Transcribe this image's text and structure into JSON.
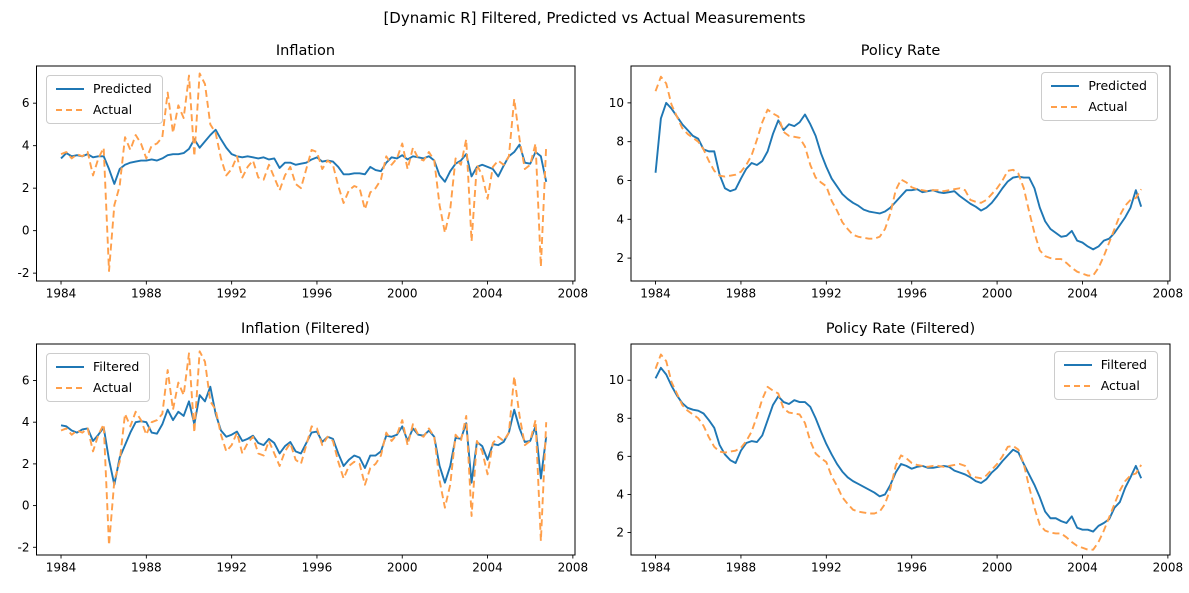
{
  "figure": {
    "title": "[Dynamic R] Filtered, Predicted vs Actual Measurements"
  },
  "colors": {
    "predicted_line": "#1f77b4",
    "filtered_line": "#1f77b4",
    "actual_line": "#ff9f4a",
    "axis": "#000000",
    "legend_border": "#cccccc",
    "background": "#ffffff"
  },
  "x_quarters": [
    1984,
    1984.25,
    1984.5,
    1984.75,
    1985,
    1985.25,
    1985.5,
    1985.75,
    1986,
    1986.25,
    1986.5,
    1986.75,
    1987,
    1987.25,
    1987.5,
    1987.75,
    1988,
    1988.25,
    1988.5,
    1988.75,
    1989,
    1989.25,
    1989.5,
    1989.75,
    1990,
    1990.25,
    1990.5,
    1990.75,
    1991,
    1991.25,
    1991.5,
    1991.75,
    1992,
    1992.25,
    1992.5,
    1992.75,
    1993,
    1993.25,
    1993.5,
    1993.75,
    1994,
    1994.25,
    1994.5,
    1994.75,
    1995,
    1995.25,
    1995.5,
    1995.75,
    1996,
    1996.25,
    1996.5,
    1996.75,
    1997,
    1997.25,
    1997.5,
    1997.75,
    1998,
    1998.25,
    1998.5,
    1998.75,
    1999,
    1999.25,
    1999.5,
    1999.75,
    2000,
    2000.25,
    2000.5,
    2000.75,
    2001,
    2001.25,
    2001.5,
    2001.75,
    2002,
    2002.25,
    2002.5,
    2002.75,
    2003,
    2003.25,
    2003.5,
    2003.75,
    2004,
    2004.25,
    2004.5,
    2004.75,
    2005,
    2005.25,
    2005.5,
    2005.75,
    2006,
    2006.25,
    2006.5,
    2006.75
  ],
  "chart_data": [
    {
      "type": "line",
      "title": "Inflation",
      "xlabel": "",
      "ylabel": "",
      "xlim": [
        1982.85,
        2008.1
      ],
      "ylim": [
        -2.37,
        7.75
      ],
      "x_ticks": [
        1984,
        1988,
        1992,
        1996,
        2000,
        2004,
        2008
      ],
      "y_ticks": [
        -2,
        0,
        2,
        4,
        6
      ],
      "grid": false,
      "legend_position": "upper-left",
      "series": [
        {
          "name": "Predicted",
          "line_style": "solid",
          "color": "#1f77b4",
          "values": [
            3.4,
            3.65,
            3.5,
            3.55,
            3.5,
            3.6,
            3.45,
            3.5,
            3.5,
            2.9,
            2.2,
            2.9,
            3.1,
            3.2,
            3.25,
            3.3,
            3.3,
            3.35,
            3.3,
            3.4,
            3.55,
            3.6,
            3.6,
            3.65,
            3.85,
            4.3,
            3.9,
            4.2,
            4.5,
            4.75,
            4.3,
            3.9,
            3.6,
            3.5,
            3.45,
            3.5,
            3.45,
            3.4,
            3.45,
            3.35,
            3.4,
            2.95,
            3.2,
            3.2,
            3.1,
            3.15,
            3.2,
            3.35,
            3.45,
            3.25,
            3.3,
            3.25,
            3.0,
            2.65,
            2.65,
            2.7,
            2.7,
            2.65,
            3.0,
            2.85,
            2.8,
            3.2,
            3.45,
            3.4,
            3.55,
            3.35,
            3.5,
            3.45,
            3.4,
            3.5,
            3.3,
            2.6,
            2.3,
            2.8,
            3.15,
            3.3,
            3.6,
            2.55,
            3.0,
            3.1,
            3.0,
            2.9,
            2.55,
            3.05,
            3.5,
            3.7,
            4.05,
            3.2,
            3.15,
            3.7,
            3.5,
            2.3
          ]
        },
        {
          "name": "Actual",
          "line_style": "dashed",
          "color": "#ff9f4a",
          "values": [
            3.6,
            3.7,
            3.4,
            3.6,
            3.5,
            3.7,
            2.6,
            3.4,
            3.9,
            -1.9,
            1.2,
            2.1,
            4.4,
            3.8,
            4.5,
            4.1,
            3.4,
            4.0,
            4.1,
            4.4,
            6.5,
            4.6,
            5.9,
            5.3,
            7.3,
            3.5,
            7.4,
            6.9,
            5.0,
            4.6,
            3.4,
            2.6,
            2.9,
            3.5,
            2.5,
            3.0,
            3.3,
            2.5,
            2.4,
            3.1,
            2.5,
            1.9,
            2.6,
            3.0,
            2.2,
            2.0,
            2.9,
            3.8,
            3.7,
            2.9,
            3.3,
            3.1,
            2.1,
            1.3,
            1.9,
            2.1,
            2.0,
            1.0,
            1.8,
            2.0,
            2.4,
            3.5,
            3.1,
            3.4,
            4.1,
            2.9,
            3.9,
            3.4,
            3.3,
            3.7,
            3.3,
            1.2,
            -0.1,
            1.0,
            3.4,
            3.1,
            4.3,
            -0.5,
            3.1,
            2.6,
            1.5,
            3.0,
            3.3,
            3.1,
            3.5,
            6.2,
            4.3,
            2.9,
            3.1,
            4.1,
            -1.7,
            4.0
          ]
        }
      ]
    },
    {
      "type": "line",
      "title": "Policy Rate",
      "xlabel": "",
      "ylabel": "",
      "xlim": [
        1982.85,
        2008.1
      ],
      "ylim": [
        0.82,
        11.9
      ],
      "x_ticks": [
        1984,
        1988,
        1992,
        1996,
        2000,
        2004,
        2008
      ],
      "y_ticks": [
        2,
        4,
        6,
        8,
        10
      ],
      "grid": false,
      "legend_position": "upper-right",
      "series": [
        {
          "name": "Predicted",
          "line_style": "solid",
          "color": "#1f77b4",
          "values": [
            6.4,
            9.2,
            10.0,
            9.7,
            9.3,
            8.9,
            8.6,
            8.3,
            8.15,
            7.6,
            7.5,
            7.5,
            6.3,
            5.6,
            5.45,
            5.55,
            6.1,
            6.6,
            6.9,
            6.8,
            7.0,
            7.5,
            8.4,
            9.1,
            8.6,
            8.9,
            8.8,
            9.0,
            9.4,
            8.9,
            8.3,
            7.4,
            6.7,
            6.1,
            5.7,
            5.3,
            5.05,
            4.85,
            4.7,
            4.5,
            4.4,
            4.35,
            4.3,
            4.4,
            4.6,
            4.9,
            5.2,
            5.5,
            5.5,
            5.55,
            5.4,
            5.45,
            5.5,
            5.4,
            5.35,
            5.4,
            5.45,
            5.2,
            5.0,
            4.8,
            4.65,
            4.45,
            4.6,
            4.85,
            5.2,
            5.6,
            5.95,
            6.15,
            6.2,
            6.15,
            6.15,
            5.6,
            4.6,
            3.9,
            3.5,
            3.3,
            3.1,
            3.15,
            3.4,
            2.9,
            2.8,
            2.6,
            2.45,
            2.6,
            2.9,
            3.0,
            3.3,
            3.7,
            4.1,
            4.6,
            5.5,
            4.65
          ]
        },
        {
          "name": "Actual",
          "line_style": "dashed",
          "color": "#ff9f4a",
          "values": [
            10.6,
            11.35,
            11.0,
            9.9,
            9.3,
            8.7,
            8.4,
            8.2,
            8.0,
            7.6,
            7.0,
            6.5,
            6.25,
            6.2,
            6.25,
            6.3,
            6.45,
            6.8,
            7.3,
            8.1,
            9.0,
            9.65,
            9.45,
            9.3,
            8.5,
            8.3,
            8.25,
            8.2,
            7.75,
            6.8,
            6.15,
            5.9,
            5.7,
            4.95,
            4.45,
            3.85,
            3.5,
            3.2,
            3.1,
            3.05,
            3.0,
            3.0,
            3.1,
            3.5,
            4.3,
            5.5,
            6.05,
            5.9,
            5.65,
            5.55,
            5.5,
            5.45,
            5.5,
            5.5,
            5.45,
            5.5,
            5.55,
            5.6,
            5.5,
            5.0,
            4.9,
            4.85,
            5.0,
            5.3,
            5.6,
            6.0,
            6.5,
            6.55,
            6.35,
            5.6,
            4.4,
            3.3,
            2.4,
            2.1,
            2.0,
            1.95,
            1.95,
            1.75,
            1.5,
            1.3,
            1.2,
            1.1,
            1.1,
            1.5,
            2.1,
            2.8,
            3.5,
            4.2,
            4.7,
            5.0,
            5.1,
            5.55
          ]
        }
      ]
    },
    {
      "type": "line",
      "title": "Inflation (Filtered)",
      "xlabel": "",
      "ylabel": "",
      "xlim": [
        1982.85,
        2008.1
      ],
      "ylim": [
        -2.37,
        7.75
      ],
      "x_ticks": [
        1984,
        1988,
        1992,
        1996,
        2000,
        2004,
        2008
      ],
      "y_ticks": [
        -2,
        0,
        2,
        4,
        6
      ],
      "grid": false,
      "legend_position": "upper-left",
      "series": [
        {
          "name": "Filtered",
          "line_style": "solid",
          "color": "#1f77b4",
          "values": [
            3.85,
            3.8,
            3.6,
            3.5,
            3.65,
            3.7,
            3.1,
            3.4,
            3.75,
            2.2,
            1.0,
            2.3,
            2.9,
            3.5,
            4.0,
            4.05,
            4.0,
            3.5,
            3.45,
            3.9,
            4.6,
            4.1,
            4.5,
            4.3,
            5.0,
            3.9,
            5.3,
            5.0,
            5.7,
            4.4,
            3.6,
            3.3,
            3.4,
            3.55,
            3.1,
            3.2,
            3.35,
            3.0,
            2.9,
            3.2,
            3.0,
            2.5,
            2.85,
            3.05,
            2.6,
            2.5,
            3.0,
            3.5,
            3.55,
            3.05,
            3.3,
            3.2,
            2.5,
            1.9,
            2.2,
            2.4,
            2.3,
            1.8,
            2.4,
            2.4,
            2.6,
            3.35,
            3.3,
            3.4,
            3.8,
            3.1,
            3.7,
            3.4,
            3.35,
            3.6,
            3.3,
            1.9,
            1.1,
            1.9,
            3.25,
            3.2,
            3.95,
            1.1,
            3.05,
            2.85,
            2.2,
            2.95,
            2.9,
            3.05,
            3.5,
            4.6,
            3.7,
            3.05,
            3.1,
            3.8,
            1.3,
            3.3
          ]
        },
        {
          "name": "Actual",
          "line_style": "dashed",
          "color": "#ff9f4a",
          "values": [
            3.6,
            3.7,
            3.4,
            3.6,
            3.5,
            3.7,
            2.6,
            3.4,
            3.9,
            -1.9,
            1.2,
            2.1,
            4.4,
            3.8,
            4.5,
            4.1,
            3.4,
            4.0,
            4.1,
            4.4,
            6.5,
            4.6,
            5.9,
            5.3,
            7.3,
            3.5,
            7.4,
            6.9,
            5.0,
            4.6,
            3.4,
            2.6,
            2.9,
            3.5,
            2.5,
            3.0,
            3.3,
            2.5,
            2.4,
            3.1,
            2.5,
            1.9,
            2.6,
            3.0,
            2.2,
            2.0,
            2.9,
            3.8,
            3.7,
            2.9,
            3.3,
            3.1,
            2.1,
            1.3,
            1.9,
            2.1,
            2.0,
            1.0,
            1.8,
            2.0,
            2.4,
            3.5,
            3.1,
            3.4,
            4.1,
            2.9,
            3.9,
            3.4,
            3.3,
            3.7,
            3.3,
            1.2,
            -0.1,
            1.0,
            3.4,
            3.1,
            4.3,
            -0.5,
            3.1,
            2.6,
            1.5,
            3.0,
            3.3,
            3.1,
            3.5,
            6.2,
            4.3,
            2.9,
            3.1,
            4.1,
            -1.7,
            4.0
          ]
        }
      ]
    },
    {
      "type": "line",
      "title": "Policy Rate (Filtered)",
      "xlabel": "",
      "ylabel": "",
      "xlim": [
        1982.85,
        2008.1
      ],
      "ylim": [
        0.82,
        11.9
      ],
      "x_ticks": [
        1984,
        1988,
        1992,
        1996,
        2000,
        2004,
        2008
      ],
      "y_ticks": [
        2,
        4,
        6,
        8,
        10
      ],
      "grid": false,
      "legend_position": "upper-right",
      "series": [
        {
          "name": "Filtered",
          "line_style": "solid",
          "color": "#1f77b4",
          "values": [
            10.1,
            10.65,
            10.3,
            9.7,
            9.2,
            8.8,
            8.55,
            8.45,
            8.4,
            8.25,
            7.9,
            7.5,
            6.6,
            6.1,
            5.8,
            5.65,
            6.3,
            6.7,
            6.8,
            6.75,
            7.1,
            7.9,
            8.7,
            9.15,
            8.85,
            8.75,
            8.95,
            8.85,
            8.85,
            8.6,
            8.0,
            7.3,
            6.65,
            6.1,
            5.6,
            5.2,
            4.9,
            4.7,
            4.55,
            4.4,
            4.25,
            4.1,
            3.9,
            4.0,
            4.5,
            5.15,
            5.6,
            5.5,
            5.35,
            5.45,
            5.5,
            5.4,
            5.4,
            5.45,
            5.5,
            5.45,
            5.25,
            5.15,
            5.05,
            4.9,
            4.7,
            4.6,
            4.8,
            5.15,
            5.4,
            5.75,
            6.05,
            6.35,
            6.2,
            5.6,
            5.05,
            4.5,
            3.85,
            3.1,
            2.75,
            2.75,
            2.6,
            2.5,
            2.85,
            2.25,
            2.15,
            2.15,
            2.05,
            2.35,
            2.5,
            2.7,
            3.3,
            3.6,
            4.35,
            4.9,
            5.5,
            4.85
          ]
        },
        {
          "name": "Actual",
          "line_style": "dashed",
          "color": "#ff9f4a",
          "values": [
            10.6,
            11.35,
            11.0,
            9.9,
            9.3,
            8.7,
            8.4,
            8.2,
            8.0,
            7.6,
            7.0,
            6.5,
            6.25,
            6.2,
            6.25,
            6.3,
            6.45,
            6.8,
            7.3,
            8.1,
            9.0,
            9.65,
            9.45,
            9.3,
            8.5,
            8.3,
            8.25,
            8.2,
            7.75,
            6.8,
            6.15,
            5.9,
            5.7,
            4.95,
            4.45,
            3.85,
            3.5,
            3.2,
            3.1,
            3.05,
            3.0,
            3.0,
            3.1,
            3.5,
            4.3,
            5.5,
            6.05,
            5.9,
            5.65,
            5.55,
            5.5,
            5.45,
            5.5,
            5.5,
            5.45,
            5.5,
            5.55,
            5.6,
            5.5,
            5.0,
            4.9,
            4.85,
            5.0,
            5.3,
            5.6,
            6.0,
            6.5,
            6.55,
            6.35,
            5.6,
            4.4,
            3.3,
            2.4,
            2.1,
            2.0,
            1.95,
            1.95,
            1.75,
            1.5,
            1.3,
            1.2,
            1.1,
            1.1,
            1.5,
            2.1,
            2.8,
            3.5,
            4.2,
            4.7,
            5.0,
            5.1,
            5.55
          ]
        }
      ]
    }
  ]
}
